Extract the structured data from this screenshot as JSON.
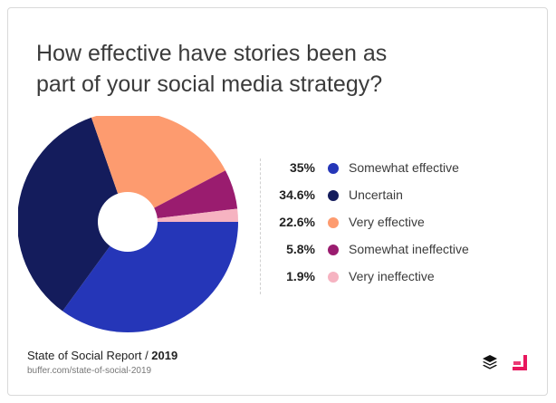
{
  "title_lines": [
    "How effective have stories been as",
    "part of your social media strategy?"
  ],
  "chart_data": {
    "type": "pie",
    "donut": true,
    "title": "How effective have stories been as part of your social media strategy?",
    "slices": [
      {
        "label": "Somewhat effective",
        "value": 35,
        "display": "35%",
        "color": "#2536b8"
      },
      {
        "label": "Uncertain",
        "value": 34.6,
        "display": "34.6%",
        "color": "#141c5c"
      },
      {
        "label": "Very effective",
        "value": 22.6,
        "display": "22.6%",
        "color": "#fd9b6f"
      },
      {
        "label": "Somewhat ineffective",
        "value": 5.8,
        "display": "5.8%",
        "color": "#9a1c6f"
      },
      {
        "label": "Very ineffective",
        "value": 1.9,
        "display": "1.9%",
        "color": "#f6b3c1"
      }
    ],
    "legend_order": [
      0,
      1,
      2,
      3,
      4
    ],
    "legend_position": "right"
  },
  "footer": {
    "report": "State of Social Report / ",
    "year": "2019",
    "url": "buffer.com/state-of-social-2019"
  },
  "logos": {
    "buffer_icon": "buffer-stack-icon",
    "partner_icon": "partner-logo-icon",
    "partner_color": "#e8175d"
  }
}
